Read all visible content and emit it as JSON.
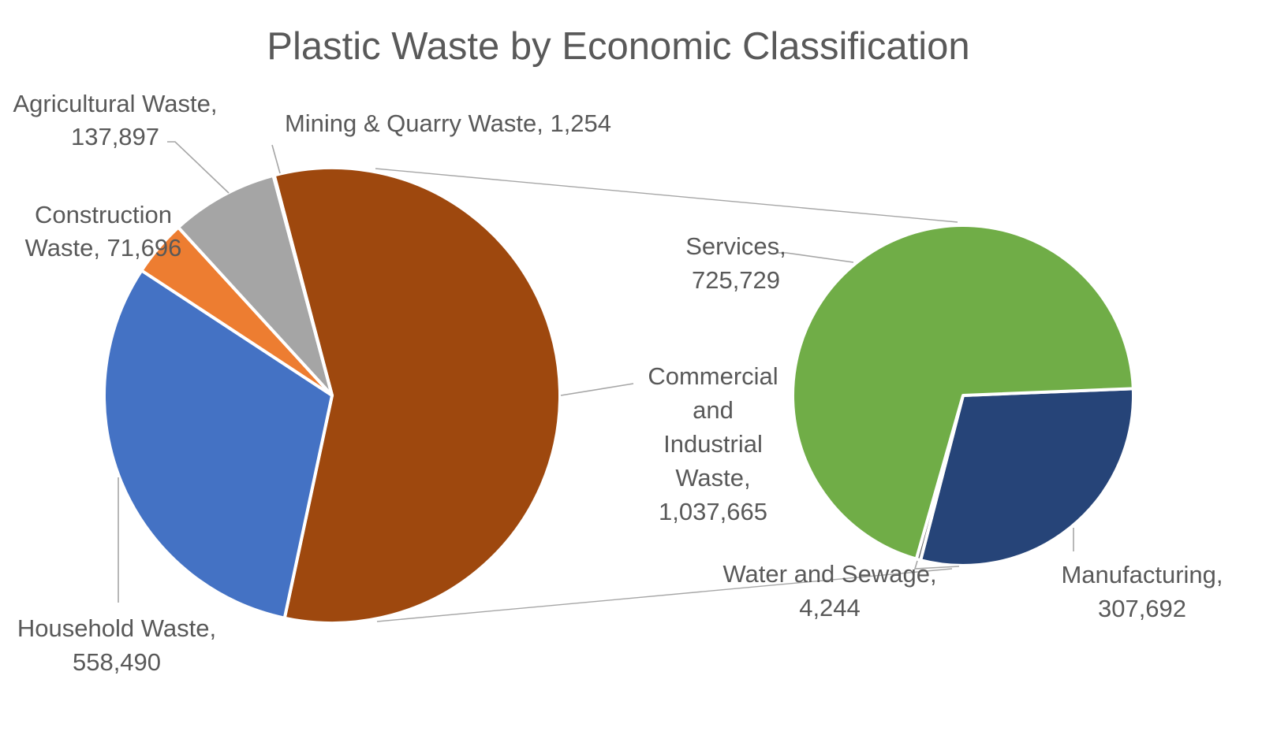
{
  "chart_data": {
    "type": "pie",
    "subtype": "bar-of-pie (pie of pie)",
    "title": "Plastic Waste by Economic Classification",
    "primary_pie": {
      "slices": [
        {
          "name": "Commercial and Industrial Waste",
          "value": 1037665,
          "value_label": "1,037,665",
          "color": "#9e480e",
          "label_lines": [
            "Commercial",
            "and",
            "Industrial",
            "Waste,",
            "1,037,665"
          ]
        },
        {
          "name": "Household Waste",
          "value": 558490,
          "value_label": "558,490",
          "color": "#4472c4",
          "label_lines": [
            "Household Waste,",
            "558,490"
          ]
        },
        {
          "name": "Construction Waste",
          "value": 71696,
          "value_label": "71,696",
          "color": "#ed7d31",
          "label_lines": [
            "Construction",
            "Waste, 71,696"
          ]
        },
        {
          "name": "Agricultural Waste",
          "value": 137897,
          "value_label": "137,897",
          "color": "#a5a5a5",
          "label_lines": [
            "Agricultural Waste,",
            "137,897"
          ]
        },
        {
          "name": "Mining & Quarry Waste",
          "value": 1254,
          "value_label": "1,254",
          "color": "#ffc000",
          "label_lines": [
            "Mining & Quarry Waste, 1,254"
          ]
        }
      ]
    },
    "secondary_pie": {
      "breakdown_of": "Commercial and Industrial Waste",
      "slices": [
        {
          "name": "Manufacturing",
          "value": 307692,
          "value_label": "307,692",
          "color": "#264478",
          "label_lines": [
            "Manufacturing,",
            "307,692"
          ]
        },
        {
          "name": "Water and Sewage",
          "value": 4244,
          "value_label": "4,244",
          "color": "#636363",
          "label_lines": [
            "Water and Sewage,",
            "4,244"
          ]
        },
        {
          "name": "Services",
          "value": 725729,
          "value_label": "725,729",
          "color": "#70ad47",
          "label_lines": [
            "Services,",
            "725,729"
          ]
        }
      ]
    },
    "legend": "none",
    "data_labels": "outside with leader lines"
  }
}
